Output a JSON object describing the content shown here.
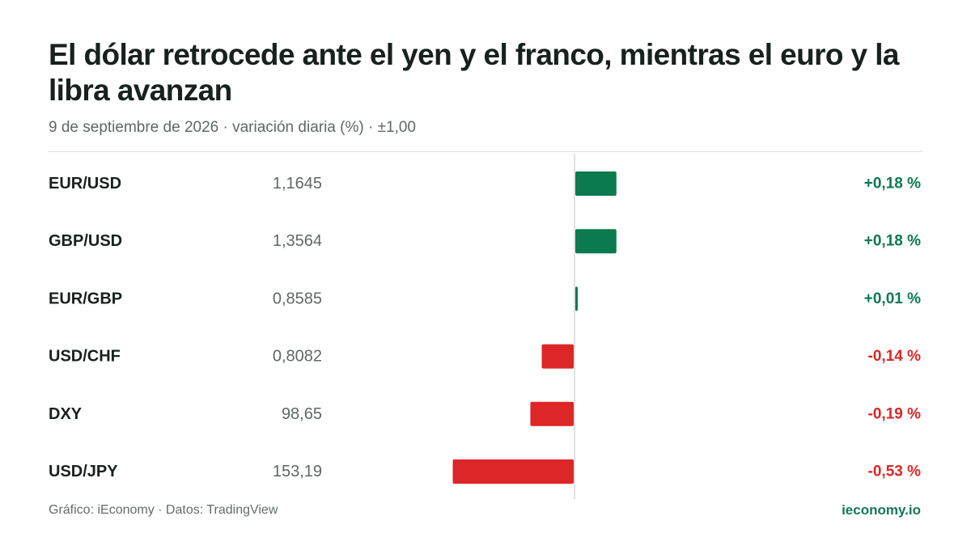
{
  "header": {
    "title": "El dólar retrocede ante el yen y el franco, mientras el euro y la libra avanzan",
    "subtitle": "9 de septiembre de 2026 · variación diaria (%) · ±1,00"
  },
  "footer": {
    "source": "Gráfico: iEconomy · Datos: TradingView",
    "brand": "ieconomy.io"
  },
  "colors": {
    "positive": "#0c7a4f",
    "negative": "#dd2627",
    "label": "#17211d",
    "price": "#5f6864",
    "axis": "#d5d9d7"
  },
  "chart_data": {
    "type": "bar",
    "orientation": "horizontal",
    "xlim": [
      -1,
      1
    ],
    "categories": [
      "EUR/USD",
      "GBP/USD",
      "EUR/GBP",
      "USD/CHF",
      "DXY",
      "USD/JPY"
    ],
    "prices": [
      "1,1645",
      "1,3564",
      "0,8585",
      "0,8082",
      "98,65",
      "153,19"
    ],
    "values": [
      0.18,
      0.18,
      0.01,
      -0.14,
      -0.19,
      -0.53
    ],
    "value_labels": [
      "+0,18 %",
      "+0,18 %",
      "+0,01 %",
      "-0,14 %",
      "-0,19 %",
      "-0,53 %"
    ]
  }
}
